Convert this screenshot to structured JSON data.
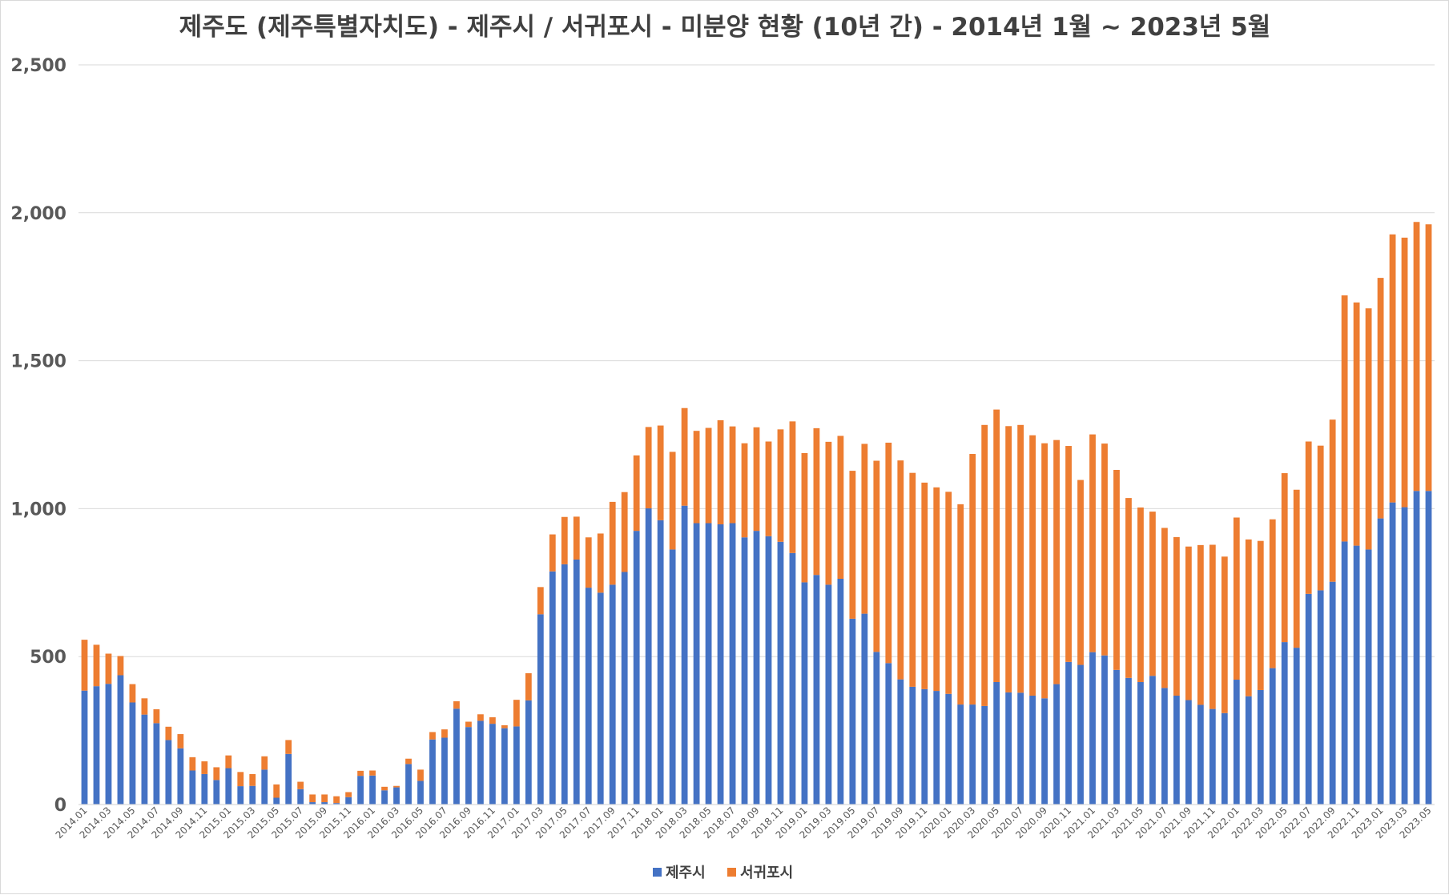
{
  "chart_data": {
    "type": "bar",
    "stacked": true,
    "title": "제주도 (제주특별자치도) - 제주시 / 서귀포시 - 미분양 현황 (10년 간) - 2014년 1월 ~ 2023년 5월",
    "xlabel": "",
    "ylabel": "",
    "ylim": [
      0,
      2500
    ],
    "yticks": [
      "0",
      "500",
      "1,000",
      "1,500",
      "2,000",
      "2,500"
    ],
    "grid": true,
    "legend_position": "bottom",
    "start_month": "2014.01",
    "x_tick_labels_every": 2,
    "colors": {
      "제주시": "#4472c4",
      "서귀포시": "#ed7d31"
    },
    "categories": [
      "2014.01",
      "2014.02",
      "2014.03",
      "2014.04",
      "2014.05",
      "2014.06",
      "2014.07",
      "2014.08",
      "2014.09",
      "2014.10",
      "2014.11",
      "2014.12",
      "2015.01",
      "2015.02",
      "2015.03",
      "2015.04",
      "2015.05",
      "2015.06",
      "2015.07",
      "2015.08",
      "2015.09",
      "2015.10",
      "2015.11",
      "2015.12",
      "2016.01",
      "2016.02",
      "2016.03",
      "2016.04",
      "2016.05",
      "2016.06",
      "2016.07",
      "2016.08",
      "2016.09",
      "2016.10",
      "2016.11",
      "2016.12",
      "2017.01",
      "2017.02",
      "2017.03",
      "2017.04",
      "2017.05",
      "2017.06",
      "2017.07",
      "2017.08",
      "2017.09",
      "2017.10",
      "2017.11",
      "2017.12",
      "2018.01",
      "2018.02",
      "2018.03",
      "2018.04",
      "2018.05",
      "2018.06",
      "2018.07",
      "2018.08",
      "2018.09",
      "2018.10",
      "2018.11",
      "2018.12",
      "2019.01",
      "2019.02",
      "2019.03",
      "2019.04",
      "2019.05",
      "2019.06",
      "2019.07",
      "2019.08",
      "2019.09",
      "2019.10",
      "2019.11",
      "2019.12",
      "2020.01",
      "2020.02",
      "2020.03",
      "2020.04",
      "2020.05",
      "2020.06",
      "2020.07",
      "2020.08",
      "2020.09",
      "2020.10",
      "2020.11",
      "2020.12",
      "2021.01",
      "2021.02",
      "2021.03",
      "2021.04",
      "2021.05",
      "2021.06",
      "2021.07",
      "2021.08",
      "2021.09",
      "2021.10",
      "2021.11",
      "2021.12",
      "2022.01",
      "2022.02",
      "2022.03",
      "2022.04",
      "2022.05",
      "2022.06",
      "2022.07",
      "2022.08",
      "2022.09",
      "2022.10",
      "2022.11",
      "2022.12",
      "2023.01",
      "2023.02",
      "2023.03",
      "2023.04",
      "2023.05"
    ],
    "series": [
      {
        "name": "제주시",
        "values": [
          385,
          400,
          408,
          437,
          345,
          304,
          275,
          218,
          190,
          115,
          103,
          83,
          123,
          62,
          63,
          118,
          23,
          171,
          52,
          8,
          8,
          5,
          25,
          97,
          98,
          48,
          58,
          137,
          80,
          220,
          226,
          324,
          262,
          283,
          273,
          258,
          264,
          352,
          643,
          788,
          812,
          828,
          733,
          716,
          743,
          786,
          925,
          1001,
          961,
          862,
          1010,
          951,
          951,
          947,
          951,
          903,
          925,
          907,
          888,
          850,
          751,
          776,
          743,
          763,
          628,
          645,
          516,
          478,
          423,
          398,
          390,
          384,
          374,
          338,
          338,
          333,
          414,
          379,
          378,
          368,
          359,
          407,
          482,
          472,
          515,
          504,
          455,
          428,
          414,
          435,
          394,
          368,
          353,
          337,
          323,
          309,
          422,
          366,
          387,
          461,
          549,
          530,
          712,
          724,
          753,
          889,
          875,
          862,
          967,
          1021,
          1005,
          1060,
          1060
        ]
      },
      {
        "name": "서귀포시",
        "values": [
          172,
          140,
          102,
          65,
          62,
          55,
          47,
          45,
          48,
          45,
          43,
          43,
          43,
          48,
          40,
          45,
          45,
          47,
          25,
          26,
          26,
          23,
          17,
          17,
          17,
          12,
          5,
          18,
          38,
          25,
          28,
          25,
          18,
          22,
          22,
          10,
          90,
          92,
          92,
          125,
          160,
          145,
          170,
          200,
          280,
          270,
          255,
          275,
          320,
          330,
          330,
          312,
          322,
          352,
          327,
          318,
          350,
          320,
          380,
          445,
          437,
          496,
          483,
          483,
          500,
          574,
          646,
          745,
          740,
          723,
          698,
          688,
          683,
          677,
          847,
          950,
          921,
          900,
          905,
          880,
          862,
          825,
          730,
          625,
          736,
          716,
          676,
          608,
          590,
          555,
          541,
          536,
          519,
          540,
          555,
          529,
          548,
          530,
          504,
          503,
          571,
          534,
          515,
          489,
          548,
          832,
          822,
          815,
          813,
          906,
          911,
          909,
          901
        ]
      }
    ]
  }
}
